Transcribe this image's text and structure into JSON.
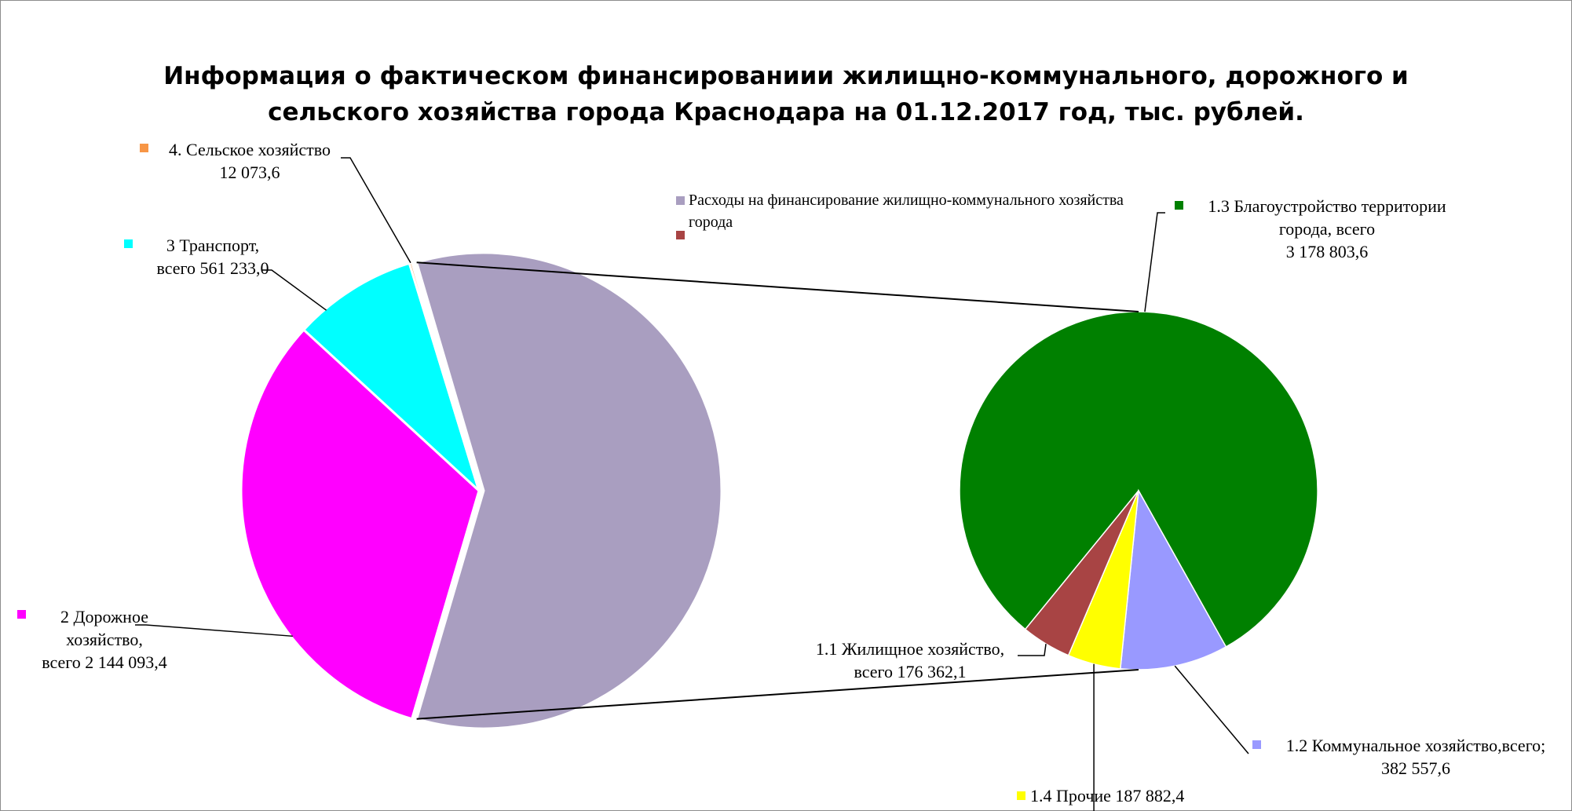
{
  "chart_data": {
    "type": "pie",
    "subtype": "pie-of-pie",
    "title_lines": [
      "Информация о фактическом финансированиии жилищно-коммунального, дорожного и",
      "сельского хозяйства города Краснодара на 01.12.2017 год, тыс. рублей."
    ],
    "legend_entries": [
      "Расходы на финансирование жилищно-коммунального хозяйства города",
      ""
    ],
    "main_pie": {
      "slices": [
        {
          "label_lines": [
            "Расходы на финансирование жилищно-коммунального хозяйства города"
          ],
          "value": 3925605.7,
          "color": "#a99ec0"
        },
        {
          "label_lines": [
            "2 Дорожное",
            "хозяйство,",
            "всего 2 144 093,4"
          ],
          "value": 2144093.4,
          "color": "#ff00ff"
        },
        {
          "label_lines": [
            "3 Транспорт,",
            "всего 561 233,0"
          ],
          "value": 561233.0,
          "color": "#00ffff"
        },
        {
          "label_lines": [
            "4. Сельское хозяйство",
            "12 073,6"
          ],
          "value": 12073.6,
          "color": "#f79646"
        }
      ]
    },
    "secondary_pie": {
      "slices": [
        {
          "label_lines": [
            "1.3 Благоустройство территории",
            "города, всего",
            "3 178 803,6"
          ],
          "value": 3178803.6,
          "color": "#008000"
        },
        {
          "label_lines": [
            "1.2 Коммунальное хозяйство,всего;",
            "382 557,6"
          ],
          "value": 382557.6,
          "color": "#9999ff"
        },
        {
          "label_lines": [
            "1.4 Прочие 187 882,4"
          ],
          "value": 187882.4,
          "color": "#ffff00"
        },
        {
          "label_lines": [
            "1.1 Жилищное хозяйство,",
            "всего 176 362,1"
          ],
          "value": 176362.1,
          "color": "#a84444"
        }
      ]
    }
  }
}
